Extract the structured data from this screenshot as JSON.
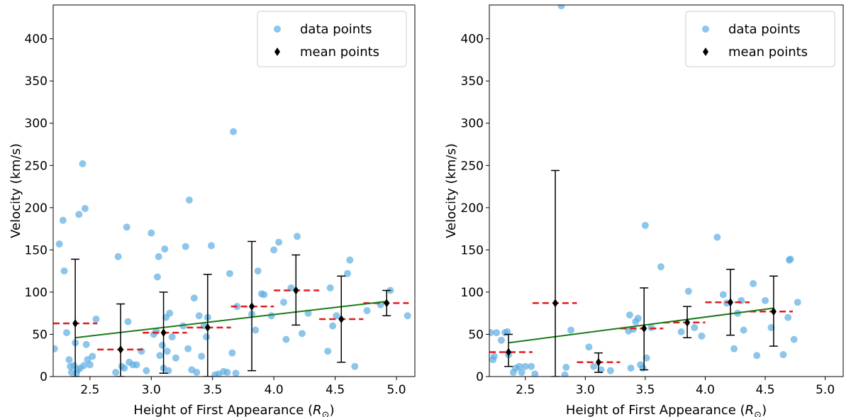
{
  "chart_data": [
    {
      "type": "scatter",
      "panel": "left",
      "xlabel": "Height of First Appearance (R_⊙)",
      "xlabel_main": "Height of First Appearance (",
      "xlabel_sym": "R",
      "xlabel_sub": "⊙",
      "xlabel_close": ")",
      "ylabel": "Velocity (km/s)",
      "xlim": [
        2.2,
        5.15
      ],
      "ylim": [
        0,
        440
      ],
      "xticks": [
        "2.5",
        "3.0",
        "3.5",
        "4.0",
        "4.5",
        "5.0"
      ],
      "xtick_values": [
        2.5,
        3.0,
        3.5,
        4.0,
        4.5,
        5.0
      ],
      "yticks": [
        "0",
        "50",
        "100",
        "150",
        "200",
        "250",
        "300",
        "350",
        "400"
      ],
      "ytick_values": [
        0,
        50,
        100,
        150,
        200,
        250,
        300,
        350,
        400
      ],
      "legend": {
        "placement": "top-right",
        "entries": [
          "data points",
          "mean points"
        ]
      },
      "colors": {
        "data": "#5dade2",
        "mean": "#000000",
        "bin": "#e31a1c",
        "fit": "#1a7a1a"
      },
      "data_points": [
        [
          2.21,
          33
        ],
        [
          2.25,
          157
        ],
        [
          2.28,
          185
        ],
        [
          2.29,
          125
        ],
        [
          2.31,
          52
        ],
        [
          2.33,
          20
        ],
        [
          2.34,
          12
        ],
        [
          2.35,
          5
        ],
        [
          2.37,
          13
        ],
        [
          2.38,
          40
        ],
        [
          2.39,
          4
        ],
        [
          2.4,
          8
        ],
        [
          2.41,
          192
        ],
        [
          2.42,
          10
        ],
        [
          2.44,
          252
        ],
        [
          2.45,
          13
        ],
        [
          2.46,
          199
        ],
        [
          2.47,
          38
        ],
        [
          2.48,
          20
        ],
        [
          2.5,
          14
        ],
        [
          2.52,
          24
        ],
        [
          2.55,
          68
        ],
        [
          2.71,
          5
        ],
        [
          2.73,
          142
        ],
        [
          2.76,
          12
        ],
        [
          2.78,
          10
        ],
        [
          2.8,
          177
        ],
        [
          2.81,
          65
        ],
        [
          2.82,
          17
        ],
        [
          2.85,
          14
        ],
        [
          2.88,
          14
        ],
        [
          2.92,
          30
        ],
        [
          2.96,
          7
        ],
        [
          3.0,
          170
        ],
        [
          3.02,
          50
        ],
        [
          3.04,
          54
        ],
        [
          3.05,
          118
        ],
        [
          3.06,
          142
        ],
        [
          3.07,
          25
        ],
        [
          3.09,
          37
        ],
        [
          3.1,
          10
        ],
        [
          3.11,
          151
        ],
        [
          3.12,
          70
        ],
        [
          3.13,
          30
        ],
        [
          3.14,
          7
        ],
        [
          3.15,
          75
        ],
        [
          3.17,
          47
        ],
        [
          3.2,
          22
        ],
        [
          3.26,
          60
        ],
        [
          3.28,
          154
        ],
        [
          3.3,
          33
        ],
        [
          3.31,
          209
        ],
        [
          3.33,
          8
        ],
        [
          3.35,
          93
        ],
        [
          3.37,
          5
        ],
        [
          3.39,
          72
        ],
        [
          3.41,
          24
        ],
        [
          3.43,
          60
        ],
        [
          3.45,
          47
        ],
        [
          3.46,
          70
        ],
        [
          3.49,
          155
        ],
        [
          3.52,
          2
        ],
        [
          3.55,
          3
        ],
        [
          3.59,
          6
        ],
        [
          3.62,
          5
        ],
        [
          3.64,
          122
        ],
        [
          3.66,
          28
        ],
        [
          3.67,
          290
        ],
        [
          3.69,
          4
        ],
        [
          3.7,
          83
        ],
        [
          3.82,
          74
        ],
        [
          3.85,
          55
        ],
        [
          3.87,
          125
        ],
        [
          3.9,
          98
        ],
        [
          3.92,
          97
        ],
        [
          3.98,
          72
        ],
        [
          4.0,
          150
        ],
        [
          4.04,
          159
        ],
        [
          4.08,
          88
        ],
        [
          4.1,
          44
        ],
        [
          4.14,
          105
        ],
        [
          4.19,
          166
        ],
        [
          4.23,
          51
        ],
        [
          4.28,
          75
        ],
        [
          4.44,
          30
        ],
        [
          4.46,
          105
        ],
        [
          4.48,
          60
        ],
        [
          4.51,
          72
        ],
        [
          4.6,
          122
        ],
        [
          4.62,
          138
        ],
        [
          4.66,
          12
        ],
        [
          4.76,
          78
        ],
        [
          4.95,
          102
        ],
        [
          5.09,
          72
        ],
        [
          4.87,
          85
        ]
      ],
      "mean_points": [
        {
          "x": 2.38,
          "y": 63,
          "lower": 0,
          "upper": 139
        },
        {
          "x": 2.75,
          "y": 32,
          "lower": 0,
          "upper": 86
        },
        {
          "x": 3.1,
          "y": 52,
          "lower": 4,
          "upper": 100
        },
        {
          "x": 3.46,
          "y": 58,
          "lower": 0,
          "upper": 121
        },
        {
          "x": 3.82,
          "y": 83,
          "lower": 7,
          "upper": 160
        },
        {
          "x": 4.18,
          "y": 102,
          "lower": 61,
          "upper": 144
        },
        {
          "x": 4.55,
          "y": 68,
          "lower": 17,
          "upper": 119
        },
        {
          "x": 4.92,
          "y": 87,
          "lower": 72,
          "upper": 102
        }
      ],
      "bin_bars": [
        {
          "x0": 2.2,
          "x1": 2.56,
          "y": 63
        },
        {
          "x0": 2.56,
          "x1": 2.93,
          "y": 32
        },
        {
          "x0": 2.93,
          "x1": 3.29,
          "y": 52
        },
        {
          "x0": 3.29,
          "x1": 3.65,
          "y": 58
        },
        {
          "x0": 3.65,
          "x1": 4.0,
          "y": 83
        },
        {
          "x0": 4.0,
          "x1": 4.37,
          "y": 102
        },
        {
          "x0": 4.37,
          "x1": 4.73,
          "y": 68
        },
        {
          "x0": 4.73,
          "x1": 5.1,
          "y": 87
        }
      ],
      "fit_line": {
        "x0": 2.38,
        "y0": 46,
        "x1": 4.92,
        "y1": 89
      }
    },
    {
      "type": "scatter",
      "panel": "right",
      "xlabel": "Height of First Appearance (R_⊙)",
      "xlabel_main": "Height of First Appearance (",
      "xlabel_sym": "R",
      "xlabel_sub": "⊙",
      "xlabel_close": ")",
      "ylabel": "Velocity (km/s)",
      "xlim": [
        2.2,
        5.15
      ],
      "ylim": [
        0,
        440
      ],
      "xticks": [
        "2.5",
        "3.0",
        "3.5",
        "4.0",
        "4.5",
        "5.0"
      ],
      "xtick_values": [
        2.5,
        3.0,
        3.5,
        4.0,
        4.5,
        5.0
      ],
      "yticks": [
        "0",
        "50",
        "100",
        "150",
        "200",
        "250",
        "300",
        "350",
        "400"
      ],
      "ytick_values": [
        0,
        50,
        100,
        150,
        200,
        250,
        300,
        350,
        400
      ],
      "legend": {
        "placement": "top-right",
        "entries": [
          "data points",
          "mean points"
        ]
      },
      "colors": {
        "data": "#5dade2",
        "mean": "#000000",
        "bin": "#e31a1c",
        "fit": "#1a7a1a"
      },
      "data_points": [
        [
          2.21,
          52
        ],
        [
          2.23,
          20
        ],
        [
          2.24,
          24
        ],
        [
          2.26,
          52
        ],
        [
          2.3,
          43
        ],
        [
          2.33,
          52
        ],
        [
          2.35,
          53
        ],
        [
          2.36,
          26
        ],
        [
          2.4,
          5
        ],
        [
          2.42,
          10
        ],
        [
          2.45,
          12
        ],
        [
          2.47,
          5
        ],
        [
          2.5,
          12
        ],
        [
          2.55,
          12
        ],
        [
          2.58,
          3
        ],
        [
          2.8,
          439
        ],
        [
          2.84,
          11
        ],
        [
          2.83,
          2
        ],
        [
          2.88,
          55
        ],
        [
          3.03,
          35
        ],
        [
          3.07,
          12
        ],
        [
          3.13,
          8
        ],
        [
          3.21,
          7
        ],
        [
          3.36,
          54
        ],
        [
          3.37,
          73
        ],
        [
          3.38,
          10
        ],
        [
          3.4,
          56
        ],
        [
          3.42,
          65
        ],
        [
          3.44,
          69
        ],
        [
          3.46,
          14
        ],
        [
          3.48,
          10
        ],
        [
          3.5,
          179
        ],
        [
          3.51,
          22
        ],
        [
          3.55,
          58
        ],
        [
          3.63,
          130
        ],
        [
          3.8,
          53
        ],
        [
          3.86,
          101
        ],
        [
          3.91,
          58
        ],
        [
          3.97,
          48
        ],
        [
          4.1,
          165
        ],
        [
          4.15,
          97
        ],
        [
          4.18,
          87
        ],
        [
          4.24,
          33
        ],
        [
          4.27,
          75
        ],
        [
          4.3,
          90
        ],
        [
          4.32,
          55
        ],
        [
          4.4,
          110
        ],
        [
          4.43,
          25
        ],
        [
          4.5,
          90
        ],
        [
          4.55,
          58
        ],
        [
          4.65,
          26
        ],
        [
          4.69,
          70
        ],
        [
          4.7,
          138
        ],
        [
          4.71,
          139
        ],
        [
          4.74,
          44
        ],
        [
          4.77,
          88
        ]
      ],
      "mean_points": [
        {
          "x": 2.36,
          "y": 29,
          "lower": 12,
          "upper": 50
        },
        {
          "x": 2.75,
          "y": 87,
          "lower": 0,
          "upper": 244
        },
        {
          "x": 3.11,
          "y": 17,
          "lower": 5,
          "upper": 28
        },
        {
          "x": 3.49,
          "y": 57,
          "lower": 8,
          "upper": 105
        },
        {
          "x": 3.85,
          "y": 64,
          "lower": 46,
          "upper": 83
        },
        {
          "x": 4.21,
          "y": 88,
          "lower": 49,
          "upper": 127
        },
        {
          "x": 4.57,
          "y": 77,
          "lower": 36,
          "upper": 119
        }
      ],
      "bin_bars": [
        {
          "x0": 2.2,
          "x1": 2.56,
          "y": 29
        },
        {
          "x0": 2.56,
          "x1": 2.93,
          "y": 87
        },
        {
          "x0": 2.93,
          "x1": 3.29,
          "y": 17
        },
        {
          "x0": 3.29,
          "x1": 3.65,
          "y": 57
        },
        {
          "x0": 3.65,
          "x1": 4.0,
          "y": 64
        },
        {
          "x0": 4.0,
          "x1": 4.37,
          "y": 88
        },
        {
          "x0": 4.37,
          "x1": 4.73,
          "y": 77
        }
      ],
      "fit_line": {
        "x0": 2.36,
        "y0": 40,
        "x1": 4.57,
        "y1": 81
      }
    }
  ]
}
